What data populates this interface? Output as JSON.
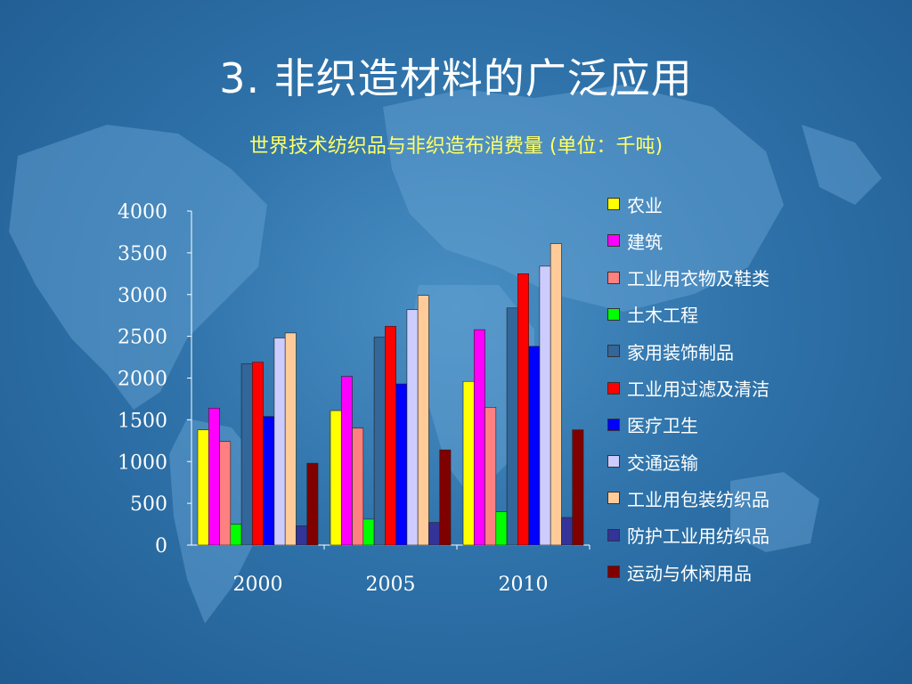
{
  "slide": {
    "title": "3. 非织造材料的广泛应用"
  },
  "chart_data": {
    "type": "bar",
    "title": "世界技术纺织品与非织造布消费量 (单位：千吨)",
    "categories": [
      "2000",
      "2005",
      "2010"
    ],
    "ylim": [
      0,
      4000
    ],
    "yticks": [
      "0",
      "500",
      "1000",
      "1500",
      "2000",
      "2500",
      "3000",
      "3500",
      "4000"
    ],
    "grid": false,
    "legend_position": "right",
    "series": [
      {
        "name": "农业",
        "color": "#ffff00",
        "values": [
          1380,
          1610,
          1960
        ]
      },
      {
        "name": "建筑",
        "color": "#ff00ff",
        "values": [
          1640,
          2020,
          2580
        ]
      },
      {
        "name": "工业用衣物及鞋类",
        "color": "#ff8080",
        "values": [
          1240,
          1400,
          1650
        ]
      },
      {
        "name": "土木工程",
        "color": "#00ff00",
        "values": [
          250,
          310,
          400
        ]
      },
      {
        "name": "家用装饰制品",
        "color": "#336699",
        "values": [
          2170,
          2490,
          2840
        ]
      },
      {
        "name": "工业用过滤及清洁",
        "color": "#ff0000",
        "values": [
          2190,
          2620,
          3250
        ]
      },
      {
        "name": "医疗卫生",
        "color": "#0000ff",
        "values": [
          1540,
          1930,
          2380
        ]
      },
      {
        "name": "交通运输",
        "color": "#ccccff",
        "values": [
          2480,
          2820,
          3340
        ]
      },
      {
        "name": "工业用包装纺织品",
        "color": "#ffcc99",
        "values": [
          2540,
          2990,
          3610
        ]
      },
      {
        "name": "防护工业用纺织品",
        "color": "#333399",
        "values": [
          230,
          270,
          330
        ]
      },
      {
        "name": "运动与休闲用品",
        "color": "#800000",
        "values": [
          980,
          1140,
          1380
        ]
      }
    ]
  }
}
